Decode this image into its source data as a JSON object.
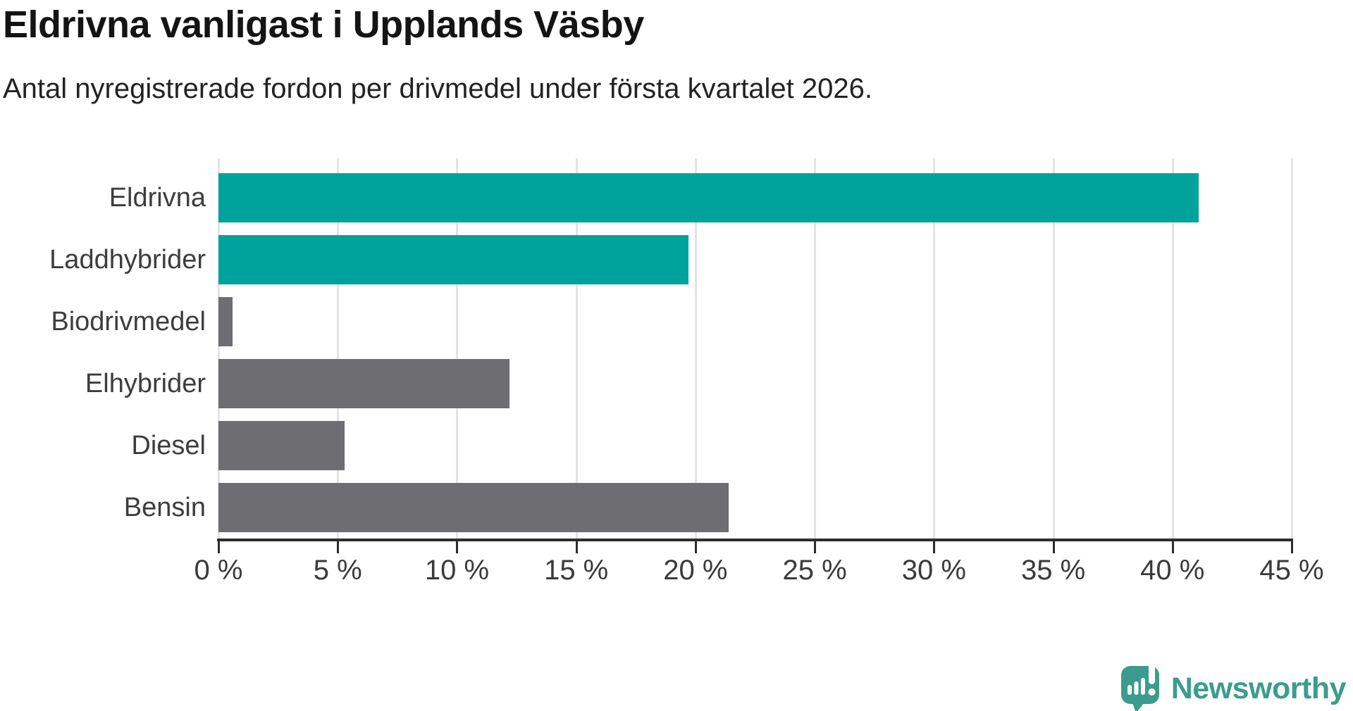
{
  "header": {
    "title": "Eldrivna vanligast i Upplands Väsby",
    "subtitle": "Antal nyregistrerade fordon per drivmedel under första kvartalet 2026."
  },
  "colors": {
    "bar_teal": "#00a39b",
    "bar_gray": "#6d6d72",
    "grid": "#e3e3e3",
    "axis": "#2d2d2d",
    "logo_teal": "#3b9c8e"
  },
  "chart_data": {
    "type": "bar",
    "orientation": "horizontal",
    "title": "Eldrivna vanligast i Upplands Väsby",
    "subtitle": "Antal nyregistrerade fordon per drivmedel under första kvartalet 2026.",
    "categories": [
      "Eldrivna",
      "Laddhybrider",
      "Biodrivmedel",
      "Elhybrider",
      "Diesel",
      "Bensin"
    ],
    "values": [
      41.1,
      19.7,
      0.6,
      12.2,
      5.3,
      21.4
    ],
    "unit": "%",
    "bar_colors": [
      "#00a39b",
      "#00a39b",
      "#6d6d72",
      "#6d6d72",
      "#6d6d72",
      "#6d6d72"
    ],
    "xlabel": "",
    "ylabel": "",
    "xlim": [
      0,
      45
    ],
    "x_tick_values": [
      0,
      5,
      10,
      15,
      20,
      25,
      30,
      35,
      40,
      45
    ],
    "x_tick_labels": [
      "0 %",
      "5 %",
      "10 %",
      "15 %",
      "20 %",
      "25 %",
      "30 %",
      "35 %",
      "40 %",
      "45 %"
    ],
    "grid": "vertical",
    "legend": "none"
  },
  "branding": {
    "logo_text": "Newsworthy"
  }
}
